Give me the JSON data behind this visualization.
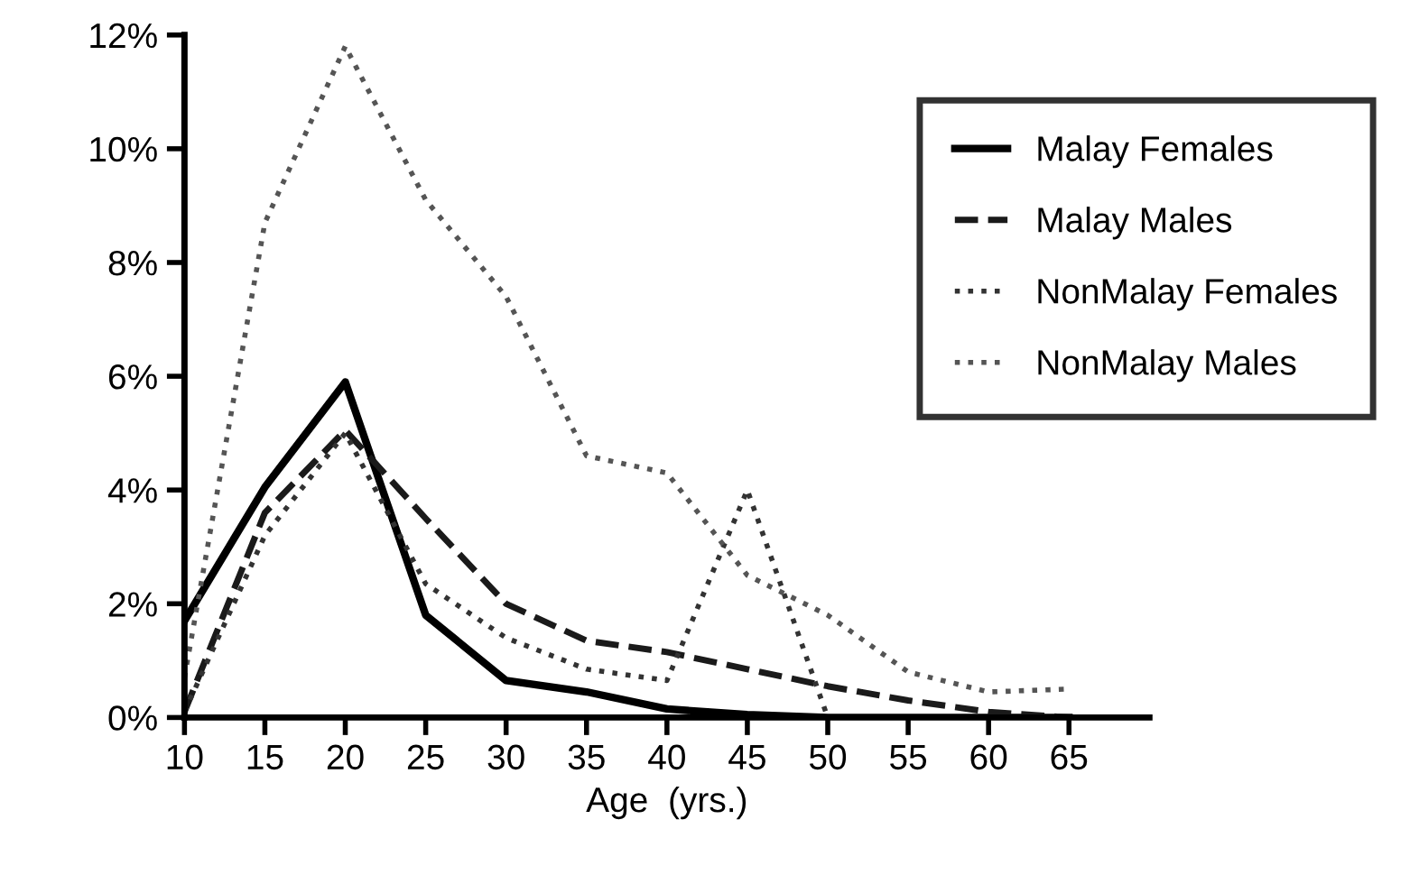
{
  "chart_data": {
    "type": "line",
    "xlabel": "Age  (yrs.)",
    "x": [
      10,
      15,
      20,
      25,
      30,
      35,
      40,
      45,
      50,
      55,
      60,
      65
    ],
    "xlim": [
      10,
      70
    ],
    "xticks": [
      10,
      15,
      20,
      25,
      30,
      35,
      40,
      45,
      50,
      55,
      60,
      65
    ],
    "ylim": [
      0,
      12
    ],
    "yticks": [
      {
        "value": 0,
        "label": "0%"
      },
      {
        "value": 2,
        "label": "2%"
      },
      {
        "value": 4,
        "label": "4%"
      },
      {
        "value": 6,
        "label": "6%"
      },
      {
        "value": 8,
        "label": "8%"
      },
      {
        "value": 10,
        "label": "10%"
      },
      {
        "value": 12,
        "label": "12%"
      }
    ],
    "grid": false,
    "legend": "top right",
    "marker": "none",
    "series": [
      {
        "name": "Malay Females",
        "color": "#000000",
        "line_style": "solid",
        "values": [
          1.7,
          4.05,
          5.9,
          1.8,
          0.65,
          0.45,
          0.15,
          0.05,
          0,
          0,
          0,
          0
        ]
      },
      {
        "name": "Malay Males",
        "color": "#1a1a1a",
        "line_style": "dashed",
        "values": [
          0.1,
          3.6,
          5.05,
          3.5,
          2.0,
          1.35,
          1.15,
          0.85,
          0.55,
          0.3,
          0.1,
          0
        ]
      },
      {
        "name": "NonMalay Females",
        "color": "#333333",
        "line_style": "dotted",
        "values": [
          0.1,
          3.2,
          5.0,
          2.35,
          1.4,
          0.85,
          0.65,
          4.0,
          0,
          0,
          0,
          0
        ]
      },
      {
        "name": "NonMalay Males",
        "color": "#555555",
        "line_style": "dotted",
        "values": [
          0.7,
          8.7,
          11.8,
          9.1,
          7.4,
          4.6,
          4.3,
          2.5,
          1.8,
          0.8,
          0.45,
          0.5
        ]
      }
    ]
  }
}
